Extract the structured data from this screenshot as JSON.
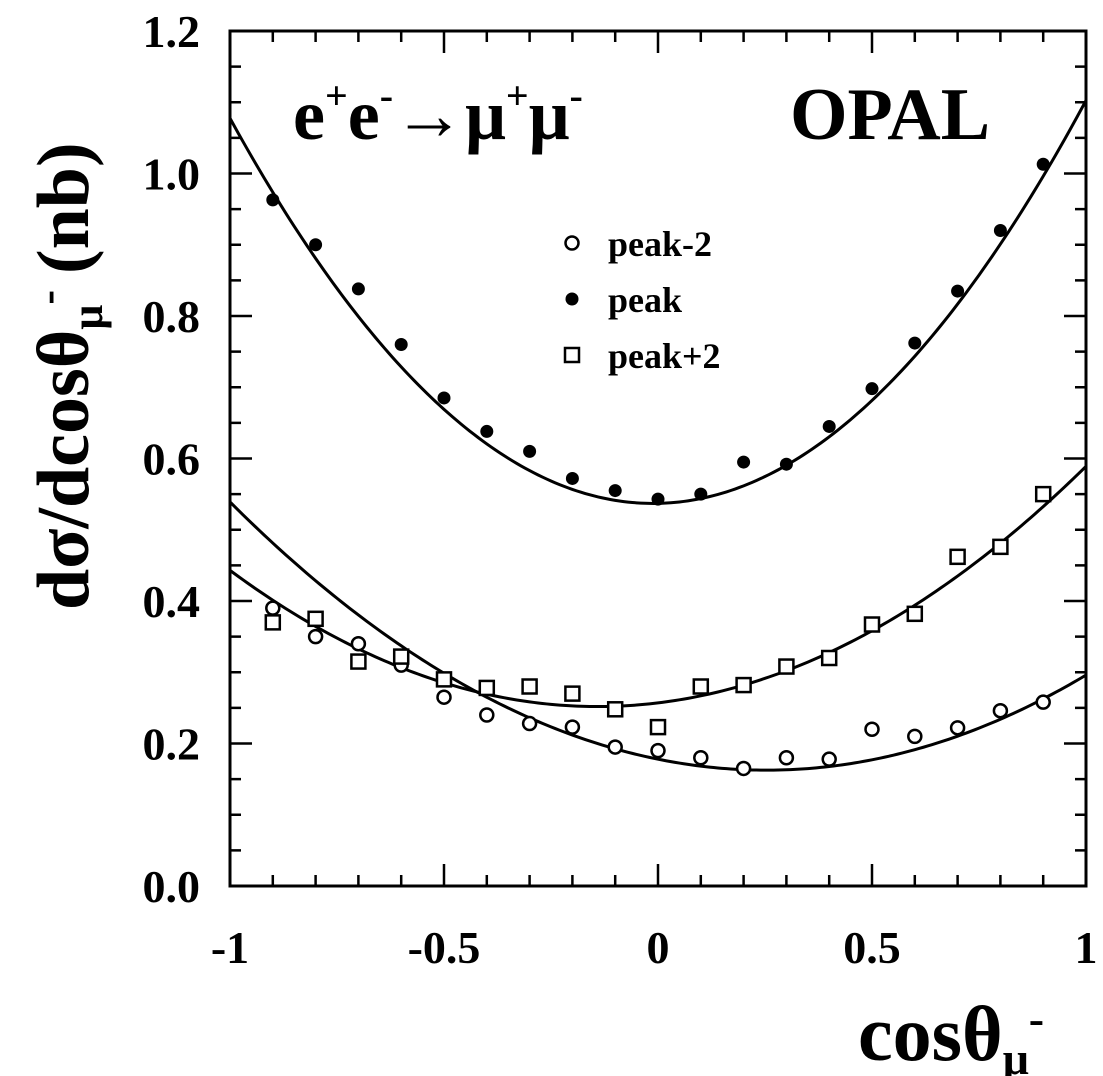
{
  "chart_data": {
    "type": "scatter",
    "title": "OPAL",
    "process": {
      "e": "e",
      "plus": "+",
      "minus": "-",
      "arrow": "→",
      "mu": "μ"
    },
    "xlabel": {
      "main": "cosθ",
      "sub": "μ",
      "sup": "-"
    },
    "ylabel": {
      "main": "dσ/dcosθ",
      "sub": "μ",
      "sup": "-",
      "unit": "(nb)"
    },
    "xlim": [
      -1,
      1
    ],
    "ylim": [
      0,
      1.2
    ],
    "x_ticks": [
      -1,
      -0.5,
      0,
      0.5,
      1
    ],
    "x_tick_labels": [
      "-1",
      "-0.5",
      "0",
      "0.5",
      "1"
    ],
    "y_ticks": [
      0,
      0.2,
      0.4,
      0.6,
      0.8,
      1.0,
      1.2
    ],
    "y_tick_labels": [
      "0.0",
      "0.2",
      "0.4",
      "0.6",
      "0.8",
      "1.0",
      "1.2"
    ],
    "grid": false,
    "legend_position": "top-center",
    "series": [
      {
        "name": "peak-2",
        "marker": "open-circle",
        "x": [
          -0.9,
          -0.8,
          -0.7,
          -0.6,
          -0.5,
          -0.4,
          -0.3,
          -0.2,
          -0.1,
          0.0,
          0.1,
          0.2,
          0.3,
          0.4,
          0.5,
          0.6,
          0.7,
          0.8,
          0.9
        ],
        "y": [
          0.39,
          0.35,
          0.34,
          0.31,
          0.265,
          0.24,
          0.228,
          0.223,
          0.195,
          0.19,
          0.18,
          0.165,
          0.18,
          0.178,
          0.22,
          0.21,
          0.222,
          0.246,
          0.258
        ],
        "fit": [
          0.2395,
          -0.1215,
          0.178
        ]
      },
      {
        "name": "peak",
        "marker": "filled-circle",
        "x": [
          -0.9,
          -0.8,
          -0.7,
          -0.6,
          -0.5,
          -0.4,
          -0.3,
          -0.2,
          -0.1,
          0.0,
          0.1,
          0.2,
          0.3,
          0.4,
          0.5,
          0.6,
          0.7,
          0.8,
          0.9
        ],
        "y": [
          0.963,
          0.9,
          0.838,
          0.76,
          0.685,
          0.638,
          0.61,
          0.572,
          0.555,
          0.543,
          0.55,
          0.595,
          0.592,
          0.645,
          0.698,
          0.762,
          0.835,
          0.92,
          1.013
        ],
        "fit": [
          0.553,
          0.0125,
          0.537
        ]
      },
      {
        "name": "peak+2",
        "marker": "open-square",
        "x": [
          -0.9,
          -0.8,
          -0.7,
          -0.6,
          -0.5,
          -0.4,
          -0.3,
          -0.2,
          -0.1,
          0.0,
          0.1,
          0.2,
          0.3,
          0.4,
          0.5,
          0.6,
          0.7,
          0.8,
          0.9
        ],
        "y": [
          0.37,
          0.375,
          0.315,
          0.322,
          0.29,
          0.278,
          0.28,
          0.27,
          0.248,
          0.223,
          0.28,
          0.282,
          0.308,
          0.32,
          0.367,
          0.382,
          0.462,
          0.476,
          0.55
        ],
        "fit": [
          0.259,
          0.073,
          0.257
        ]
      }
    ]
  }
}
